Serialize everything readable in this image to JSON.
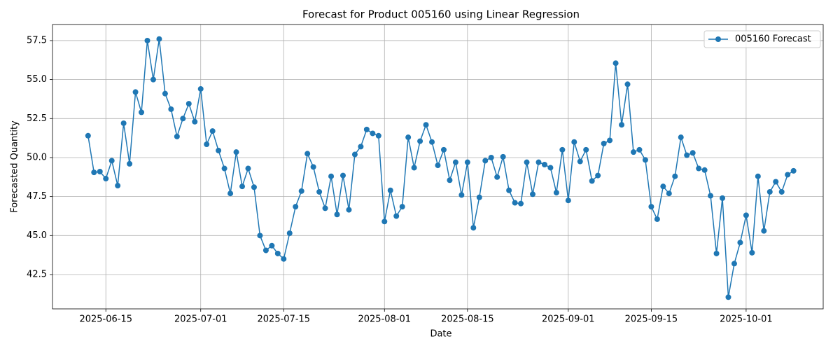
{
  "chart_data": {
    "type": "line",
    "title": "Forecast for Product 005160 using Linear Regression",
    "xlabel": "Date",
    "ylabel": "Forecasted Quantity",
    "x": [
      "2025-06-12",
      "2025-06-13",
      "2025-06-14",
      "2025-06-15",
      "2025-06-16",
      "2025-06-17",
      "2025-06-18",
      "2025-06-19",
      "2025-06-20",
      "2025-06-21",
      "2025-06-22",
      "2025-06-23",
      "2025-06-24",
      "2025-06-25",
      "2025-06-26",
      "2025-06-27",
      "2025-06-28",
      "2025-06-29",
      "2025-06-30",
      "2025-07-01",
      "2025-07-02",
      "2025-07-03",
      "2025-07-04",
      "2025-07-05",
      "2025-07-06",
      "2025-07-07",
      "2025-07-08",
      "2025-07-09",
      "2025-07-10",
      "2025-07-11",
      "2025-07-12",
      "2025-07-13",
      "2025-07-14",
      "2025-07-15",
      "2025-07-16",
      "2025-07-17",
      "2025-07-18",
      "2025-07-19",
      "2025-07-20",
      "2025-07-21",
      "2025-07-22",
      "2025-07-23",
      "2025-07-24",
      "2025-07-25",
      "2025-07-26",
      "2025-07-27",
      "2025-07-28",
      "2025-07-29",
      "2025-07-30",
      "2025-07-31",
      "2025-08-01",
      "2025-08-02",
      "2025-08-03",
      "2025-08-04",
      "2025-08-05",
      "2025-08-06",
      "2025-08-07",
      "2025-08-08",
      "2025-08-09",
      "2025-08-10",
      "2025-08-11",
      "2025-08-12",
      "2025-08-13",
      "2025-08-14",
      "2025-08-15",
      "2025-08-16",
      "2025-08-17",
      "2025-08-18",
      "2025-08-19",
      "2025-08-20",
      "2025-08-21",
      "2025-08-22",
      "2025-08-23",
      "2025-08-24",
      "2025-08-25",
      "2025-08-26",
      "2025-08-27",
      "2025-08-28",
      "2025-08-29",
      "2025-08-30",
      "2025-08-31",
      "2025-09-01",
      "2025-09-02",
      "2025-09-03",
      "2025-09-04",
      "2025-09-05",
      "2025-09-06",
      "2025-09-07",
      "2025-09-08",
      "2025-09-09",
      "2025-09-10",
      "2025-09-11",
      "2025-09-12",
      "2025-09-13",
      "2025-09-14",
      "2025-09-15",
      "2025-09-16",
      "2025-09-17",
      "2025-09-18",
      "2025-09-19",
      "2025-09-20",
      "2025-09-21",
      "2025-09-22",
      "2025-09-23",
      "2025-09-24",
      "2025-09-25",
      "2025-09-26",
      "2025-09-27",
      "2025-09-28",
      "2025-09-29",
      "2025-09-30",
      "2025-10-01",
      "2025-10-02",
      "2025-10-03",
      "2025-10-04",
      "2025-10-05",
      "2025-10-06",
      "2025-10-07",
      "2025-10-08",
      "2025-10-09"
    ],
    "series": [
      {
        "name": "005160 Forecast",
        "color": "#1f77b4",
        "values": [
          51.4,
          49.05,
          49.1,
          48.65,
          49.8,
          48.2,
          52.2,
          49.6,
          54.2,
          52.9,
          57.5,
          55.0,
          57.6,
          54.1,
          53.1,
          51.35,
          52.5,
          53.45,
          52.3,
          54.4,
          50.85,
          51.7,
          50.45,
          49.3,
          47.7,
          50.35,
          48.15,
          49.3,
          48.1,
          45.0,
          44.05,
          44.35,
          43.85,
          43.5,
          45.15,
          46.85,
          47.85,
          50.25,
          49.4,
          47.8,
          46.75,
          48.8,
          46.35,
          48.85,
          46.65,
          50.2,
          50.7,
          51.8,
          51.55,
          51.4,
          45.9,
          47.9,
          46.25,
          46.85,
          51.3,
          49.35,
          51.05,
          52.1,
          51.0,
          49.5,
          50.5,
          48.55,
          49.7,
          47.6,
          49.7,
          45.5,
          47.45,
          49.8,
          50.0,
          48.75,
          50.05,
          47.9,
          47.1,
          47.05,
          49.7,
          47.65,
          49.7,
          49.55,
          49.35,
          47.75,
          50.5,
          47.25,
          51.0,
          49.75,
          50.5,
          48.5,
          48.85,
          50.9,
          51.1,
          56.05,
          52.1,
          54.7,
          50.35,
          50.5,
          49.85,
          46.85,
          46.05,
          48.15,
          47.7,
          48.8,
          51.3,
          50.15,
          50.3,
          49.3,
          49.2,
          47.55,
          43.85,
          47.4,
          41.05,
          43.2,
          44.55,
          46.3,
          43.9,
          48.8,
          45.3,
          47.8,
          48.45,
          47.8,
          48.9,
          49.15
        ]
      }
    ],
    "xlim": [
      "2025-06-06",
      "2025-10-14"
    ],
    "xticks": [
      "2025-06-15",
      "2025-07-01",
      "2025-07-15",
      "2025-08-01",
      "2025-08-15",
      "2025-09-01",
      "2025-09-15",
      "2025-10-01"
    ],
    "ylim": [
      40.3,
      58.53
    ],
    "yticks": [
      42.5,
      {
        "value": 45,
        "label": "45.0"
      },
      47.5,
      {
        "value": 50,
        "label": "50.0"
      },
      52.5,
      {
        "value": 55,
        "label": "55.0"
      },
      57.5
    ],
    "grid": true,
    "legend": "upper right"
  }
}
